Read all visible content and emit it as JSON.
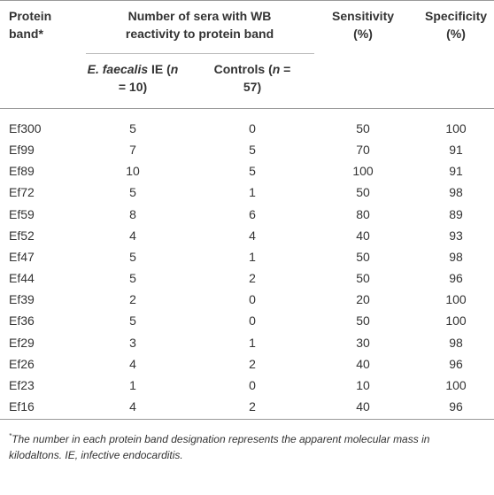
{
  "table": {
    "header": {
      "band": "Protein band*",
      "group": "Number of sera with WB reactivity to protein band",
      "sub": [
        [
          {
            "text": "E. faecalis",
            "italic": true
          },
          {
            "text": " IE (",
            "italic": false
          },
          {
            "text": "n",
            "italic": true
          },
          {
            "text": " = 10)",
            "italic": false
          }
        ],
        [
          {
            "text": "Controls (",
            "italic": false
          },
          {
            "text": "n",
            "italic": true
          },
          {
            "text": " = 57)",
            "italic": false
          }
        ]
      ],
      "sensitivity": "Sensitivity (%)",
      "specificity": "Specificity (%)"
    },
    "rows": [
      [
        "Ef300",
        5,
        0,
        50,
        100
      ],
      [
        "Ef99",
        7,
        5,
        70,
        91
      ],
      [
        "Ef89",
        10,
        5,
        100,
        91
      ],
      [
        "Ef72",
        5,
        1,
        50,
        98
      ],
      [
        "Ef59",
        8,
        6,
        80,
        89
      ],
      [
        "Ef52",
        4,
        4,
        40,
        93
      ],
      [
        "Ef47",
        5,
        1,
        50,
        98
      ],
      [
        "Ef44",
        5,
        2,
        50,
        96
      ],
      [
        "Ef39",
        2,
        0,
        20,
        100
      ],
      [
        "Ef36",
        5,
        0,
        50,
        100
      ],
      [
        "Ef29",
        3,
        1,
        30,
        98
      ],
      [
        "Ef26",
        4,
        2,
        40,
        96
      ],
      [
        "Ef23",
        1,
        0,
        10,
        100
      ],
      [
        "Ef16",
        4,
        2,
        40,
        96
      ]
    ],
    "footnote": {
      "marker": "*",
      "text": "The number in each protein band designation represents the apparent molecular mass in kilodaltons. IE, infective endocarditis."
    }
  }
}
